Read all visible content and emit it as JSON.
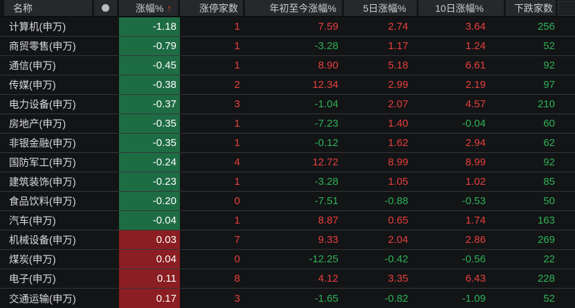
{
  "colors": {
    "page_bg": "#131416",
    "header_bg": "#26282c",
    "header_text": "#cdced0",
    "divider": "#131416",
    "row_border": "#34363a",
    "name_text": "#d9dadb",
    "up_text": "#e6403d",
    "down_text": "#2db257",
    "up_cell_bg": "#8b1e22",
    "down_cell_bg": "#1e6c44",
    "cell_value_text": "#ffffff",
    "sort_arrow": "#e94e2b",
    "dot": "#b9bcbf",
    "gutter_bg": "#1e2023",
    "gutter_border": "#303237"
  },
  "icons": {
    "header_dot": "●",
    "sort_ascending": "↑"
  },
  "table": {
    "columns": {
      "name": {
        "label": "名称"
      },
      "change": {
        "label": "涨幅%"
      },
      "limit_up": {
        "label": "涨停家数"
      },
      "ytd": {
        "label": "年初至今涨幅%"
      },
      "d5": {
        "label": "5日涨幅%"
      },
      "d10": {
        "label": "10日涨幅%"
      },
      "decliners": {
        "label": "下跌家数"
      }
    },
    "sort": {
      "column": "涨幅%",
      "direction": "ascending"
    },
    "rows": [
      {
        "name": "计算机(申万)",
        "change": "-1.18",
        "limit_up": "1",
        "ytd": "7.59",
        "d5": "2.74",
        "d10": "3.64",
        "decliners": "256"
      },
      {
        "name": "商贸零售(申万)",
        "change": "-0.79",
        "limit_up": "1",
        "ytd": "-3.28",
        "d5": "1.17",
        "d10": "1.24",
        "decliners": "52"
      },
      {
        "name": "通信(申万)",
        "change": "-0.45",
        "limit_up": "1",
        "ytd": "8.90",
        "d5": "5.18",
        "d10": "6.61",
        "decliners": "92"
      },
      {
        "name": "传媒(申万)",
        "change": "-0.38",
        "limit_up": "2",
        "ytd": "12.34",
        "d5": "2.99",
        "d10": "2.19",
        "decliners": "97"
      },
      {
        "name": "电力设备(申万)",
        "change": "-0.37",
        "limit_up": "3",
        "ytd": "-1.04",
        "d5": "2.07",
        "d10": "4.57",
        "decliners": "210"
      },
      {
        "name": "房地产(申万)",
        "change": "-0.35",
        "limit_up": "1",
        "ytd": "-7.23",
        "d5": "1.40",
        "d10": "-0.04",
        "decliners": "60"
      },
      {
        "name": "非银金融(申万)",
        "change": "-0.35",
        "limit_up": "1",
        "ytd": "-0.12",
        "d5": "1.62",
        "d10": "2.94",
        "decliners": "62"
      },
      {
        "name": "国防军工(申万)",
        "change": "-0.24",
        "limit_up": "4",
        "ytd": "12.72",
        "d5": "8.99",
        "d10": "8.99",
        "decliners": "92"
      },
      {
        "name": "建筑装饰(申万)",
        "change": "-0.23",
        "limit_up": "1",
        "ytd": "-3.28",
        "d5": "1.05",
        "d10": "1.02",
        "decliners": "85"
      },
      {
        "name": "食品饮料(申万)",
        "change": "-0.20",
        "limit_up": "0",
        "ytd": "-7.51",
        "d5": "-0.88",
        "d10": "-0.53",
        "decliners": "50"
      },
      {
        "name": "汽车(申万)",
        "change": "-0.04",
        "limit_up": "1",
        "ytd": "8.87",
        "d5": "0.65",
        "d10": "1.74",
        "decliners": "163"
      },
      {
        "name": "机械设备(申万)",
        "change": "0.03",
        "limit_up": "7",
        "ytd": "9.33",
        "d5": "2.04",
        "d10": "2.86",
        "decliners": "269"
      },
      {
        "name": "煤炭(申万)",
        "change": "0.04",
        "limit_up": "0",
        "ytd": "-12.25",
        "d5": "-0.42",
        "d10": "-0.56",
        "decliners": "22"
      },
      {
        "name": "电子(申万)",
        "change": "0.11",
        "limit_up": "8",
        "ytd": "4.12",
        "d5": "3.35",
        "d10": "6.43",
        "decliners": "228"
      },
      {
        "name": "交通运输(申万)",
        "change": "0.17",
        "limit_up": "3",
        "ytd": "-1.65",
        "d5": "-0.82",
        "d10": "-1.09",
        "decliners": "52"
      }
    ]
  }
}
